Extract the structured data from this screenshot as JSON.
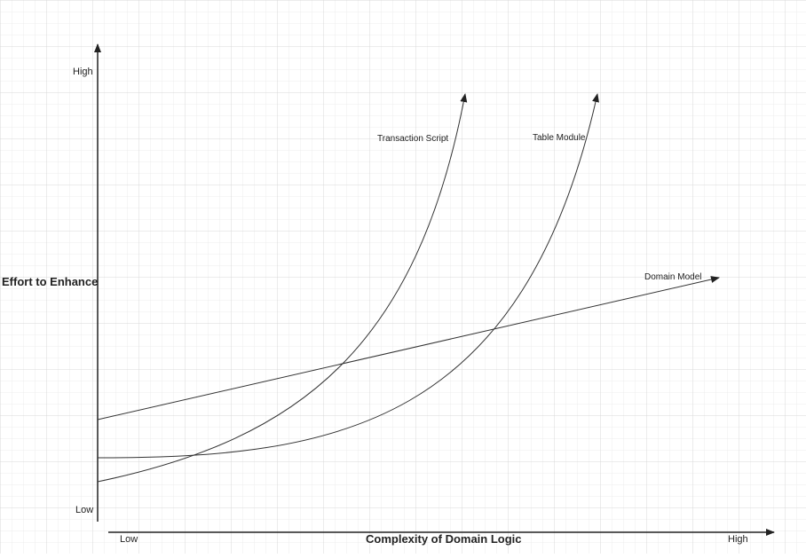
{
  "axes": {
    "y_title": "Effort to Enhance",
    "y_high": "High",
    "y_low": "Low",
    "x_title": "Complexity of Domain Logic",
    "x_low": "Low",
    "x_high": "High"
  },
  "curves": [
    {
      "name": "Transaction Script"
    },
    {
      "name": "Table Module"
    },
    {
      "name": "Domain Model"
    }
  ],
  "style": {
    "grid_color": "#e3e3e3",
    "line_color": "#333333"
  }
}
